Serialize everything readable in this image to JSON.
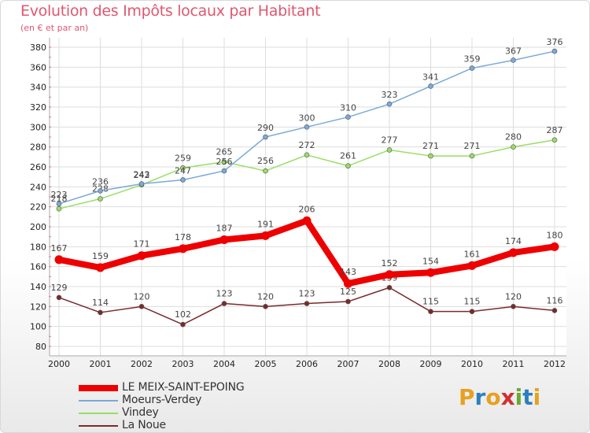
{
  "title": "Evolution des Impôts locaux par Habitant",
  "subtitle": "(en € et par an)",
  "logo": {
    "letters": [
      "P",
      "r",
      "o",
      "x",
      "i",
      "t",
      "i"
    ],
    "colors": [
      "#e8a020",
      "#2a7fc0",
      "#e8a020",
      "#d03030",
      "#6aaa30",
      "#2a7fc0",
      "#e8a020"
    ]
  },
  "chart_data": {
    "type": "line",
    "x": [
      "2000",
      "2001",
      "2002",
      "2003",
      "2004",
      "2005",
      "2006",
      "2007",
      "2008",
      "2009",
      "2010",
      "2011",
      "2012"
    ],
    "ylim": [
      80,
      380
    ],
    "yticks": [
      80,
      100,
      120,
      140,
      160,
      180,
      200,
      220,
      240,
      260,
      280,
      300,
      320,
      340,
      360,
      380
    ],
    "grid": true,
    "legend_position": "bottom-left",
    "series": [
      {
        "name": "LE MEIX-SAINT-EPOING",
        "color": "#ee0000",
        "width": 8,
        "values": [
          167,
          159,
          171,
          178,
          187,
          191,
          206,
          143,
          152,
          154,
          161,
          174,
          180
        ]
      },
      {
        "name": "Moeurs-Verdey",
        "color": "#7aaad8",
        "width": 1.5,
        "values": [
          223,
          236,
          243,
          247,
          256,
          290,
          300,
          310,
          323,
          341,
          359,
          367,
          376
        ]
      },
      {
        "name": "Vindey",
        "color": "#99dd66",
        "width": 1.5,
        "values": [
          218,
          228,
          242,
          259,
          265,
          256,
          272,
          261,
          277,
          271,
          271,
          280,
          287
        ]
      },
      {
        "name": "La Noue",
        "color": "#7a2a2a",
        "width": 1.5,
        "values": [
          129,
          114,
          120,
          102,
          123,
          120,
          123,
          125,
          139,
          115,
          115,
          120,
          116
        ]
      }
    ]
  }
}
